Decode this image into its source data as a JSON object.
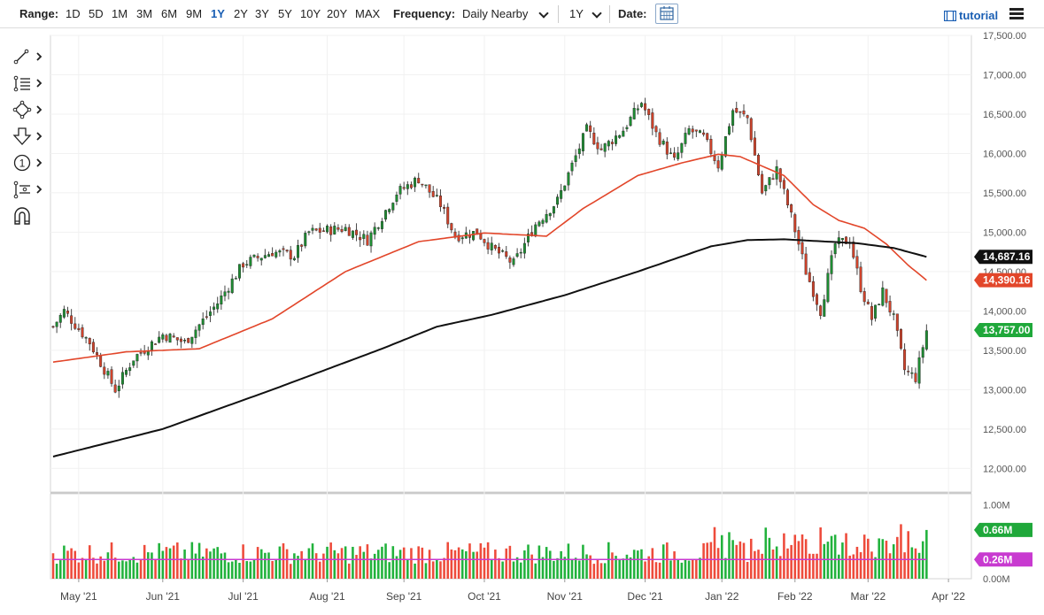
{
  "toolbar": {
    "range_label": "Range:",
    "ranges": [
      "1D",
      "5D",
      "1M",
      "3M",
      "6M",
      "9M",
      "1Y",
      "2Y",
      "3Y",
      "5Y",
      "10Y",
      "20Y",
      "MAX"
    ],
    "active_range": "1Y",
    "frequency_label": "Frequency:",
    "frequency_value": "Daily Nearby",
    "period_value": "1Y",
    "date_label": "Date:",
    "tutorial_label": "tutorial",
    "icons": {
      "date": "calendar-icon",
      "tutorial": "film-icon",
      "menu": "hamburger-menu-icon"
    }
  },
  "tools": [
    {
      "name": "trendline-tool",
      "icon": "line-draw-icon"
    },
    {
      "name": "fibonacci-tool",
      "icon": "fib-lines-icon"
    },
    {
      "name": "shapes-tool",
      "icon": "diamond-nodes-icon"
    },
    {
      "name": "annotation-tool",
      "icon": "arrow-down-icon"
    },
    {
      "name": "numbered-marker-tool",
      "icon": "circled-one-icon"
    },
    {
      "name": "measure-tool",
      "icon": "ruler-nodes-icon"
    },
    {
      "name": "magnet-tool",
      "icon": "magnet-icon"
    }
  ],
  "chart_data": {
    "type": "candlestick",
    "price_axis": {
      "ylim": [
        11700,
        17500
      ],
      "ticks": [
        "17,500.00",
        "17,000.00",
        "16,500.00",
        "16,000.00",
        "15,500.00",
        "15,000.00",
        "14,500.00",
        "14,000.00",
        "13,500.00",
        "13,000.00",
        "12,500.00",
        "12,000.00"
      ],
      "tick_values": [
        17500,
        17000,
        16500,
        16000,
        15500,
        15000,
        14500,
        14000,
        13500,
        13000,
        12500,
        12000
      ]
    },
    "x_axis": {
      "labels": [
        "May '21",
        "Jun '21",
        "Jul '21",
        "Aug '21",
        "Sep '21",
        "Oct '21",
        "Nov '21",
        "Dec '21",
        "Jan '22",
        "Feb '22",
        "Mar '22",
        "Apr '22"
      ],
      "label_trading_day": [
        7,
        30,
        52,
        75,
        96,
        118,
        140,
        162,
        183,
        203,
        223,
        245
      ]
    },
    "price_anchors": [
      {
        "day": 0,
        "v": 13800
      },
      {
        "day": 3,
        "v": 14000
      },
      {
        "day": 10,
        "v": 13600
      },
      {
        "day": 17,
        "v": 13000
      },
      {
        "day": 22,
        "v": 13400
      },
      {
        "day": 30,
        "v": 13700
      },
      {
        "day": 36,
        "v": 13600
      },
      {
        "day": 45,
        "v": 14100
      },
      {
        "day": 52,
        "v": 14600
      },
      {
        "day": 60,
        "v": 14750
      },
      {
        "day": 66,
        "v": 14700
      },
      {
        "day": 70,
        "v": 15000
      },
      {
        "day": 80,
        "v": 15050
      },
      {
        "day": 86,
        "v": 14900
      },
      {
        "day": 94,
        "v": 15500
      },
      {
        "day": 100,
        "v": 15680
      },
      {
        "day": 106,
        "v": 15350
      },
      {
        "day": 110,
        "v": 14950
      },
      {
        "day": 116,
        "v": 15000
      },
      {
        "day": 120,
        "v": 14800
      },
      {
        "day": 126,
        "v": 14600
      },
      {
        "day": 132,
        "v": 15100
      },
      {
        "day": 138,
        "v": 15400
      },
      {
        "day": 146,
        "v": 16300
      },
      {
        "day": 150,
        "v": 16050
      },
      {
        "day": 156,
        "v": 16300
      },
      {
        "day": 161,
        "v": 16650
      },
      {
        "day": 165,
        "v": 16250
      },
      {
        "day": 170,
        "v": 15900
      },
      {
        "day": 174,
        "v": 16300
      },
      {
        "day": 178,
        "v": 16200
      },
      {
        "day": 182,
        "v": 15850
      },
      {
        "day": 186,
        "v": 16550
      },
      {
        "day": 190,
        "v": 16450
      },
      {
        "day": 194,
        "v": 15500
      },
      {
        "day": 198,
        "v": 15800
      },
      {
        "day": 202,
        "v": 15200
      },
      {
        "day": 206,
        "v": 14500
      },
      {
        "day": 210,
        "v": 14000
      },
      {
        "day": 214,
        "v": 14850
      },
      {
        "day": 218,
        "v": 14900
      },
      {
        "day": 221,
        "v": 14300
      },
      {
        "day": 224,
        "v": 13900
      },
      {
        "day": 227,
        "v": 14250
      },
      {
        "day": 230,
        "v": 13900
      },
      {
        "day": 233,
        "v": 13250
      },
      {
        "day": 236,
        "v": 13150
      },
      {
        "day": 239,
        "v": 13750
      }
    ],
    "ma50_anchors": [
      {
        "day": 0,
        "v": 13350
      },
      {
        "day": 20,
        "v": 13480
      },
      {
        "day": 40,
        "v": 13520
      },
      {
        "day": 60,
        "v": 13900
      },
      {
        "day": 80,
        "v": 14500
      },
      {
        "day": 100,
        "v": 14880
      },
      {
        "day": 118,
        "v": 14990
      },
      {
        "day": 135,
        "v": 14950
      },
      {
        "day": 145,
        "v": 15300
      },
      {
        "day": 160,
        "v": 15720
      },
      {
        "day": 172,
        "v": 15880
      },
      {
        "day": 182,
        "v": 15990
      },
      {
        "day": 188,
        "v": 15960
      },
      {
        "day": 200,
        "v": 15720
      },
      {
        "day": 208,
        "v": 15350
      },
      {
        "day": 215,
        "v": 15150
      },
      {
        "day": 222,
        "v": 15050
      },
      {
        "day": 228,
        "v": 14850
      },
      {
        "day": 234,
        "v": 14580
      },
      {
        "day": 239,
        "v": 14390
      }
    ],
    "ma200_anchors": [
      {
        "day": 0,
        "v": 12150
      },
      {
        "day": 30,
        "v": 12500
      },
      {
        "day": 60,
        "v": 13000
      },
      {
        "day": 90,
        "v": 13520
      },
      {
        "day": 105,
        "v": 13800
      },
      {
        "day": 120,
        "v": 13950
      },
      {
        "day": 140,
        "v": 14200
      },
      {
        "day": 160,
        "v": 14500
      },
      {
        "day": 180,
        "v": 14820
      },
      {
        "day": 190,
        "v": 14900
      },
      {
        "day": 200,
        "v": 14910
      },
      {
        "day": 220,
        "v": 14860
      },
      {
        "day": 230,
        "v": 14800
      },
      {
        "day": 239,
        "v": 14687
      }
    ],
    "series": [
      {
        "name": "",
        "type": "candles",
        "bull_color": "#1e8c32",
        "bear_color": "#d0432b"
      },
      {
        "name": "",
        "type": "line",
        "color": "#e2462a"
      },
      {
        "name": "",
        "type": "line",
        "color": "#111111"
      }
    ],
    "last_values": [
      {
        "label": "14,687.16",
        "value": 14687.16,
        "color": "#111111"
      },
      {
        "label": "14,390.16",
        "value": 14390.16,
        "color": "#e2462a"
      },
      {
        "label": "13,757.00",
        "value": 13757,
        "color": "#1fa83a"
      }
    ],
    "volume": {
      "ylim": [
        0,
        1150000
      ],
      "ticks": [
        "1.00M",
        "0.00M"
      ],
      "tick_values": [
        1000000,
        0
      ],
      "avg_value": 260000,
      "avg_color": "#c83ad0",
      "last_values": [
        {
          "label": "0.66M",
          "value": 660000,
          "color": "#1fa83a"
        },
        {
          "label": "0.26M",
          "value": 260000,
          "color": "#c83ad0"
        }
      ]
    }
  }
}
